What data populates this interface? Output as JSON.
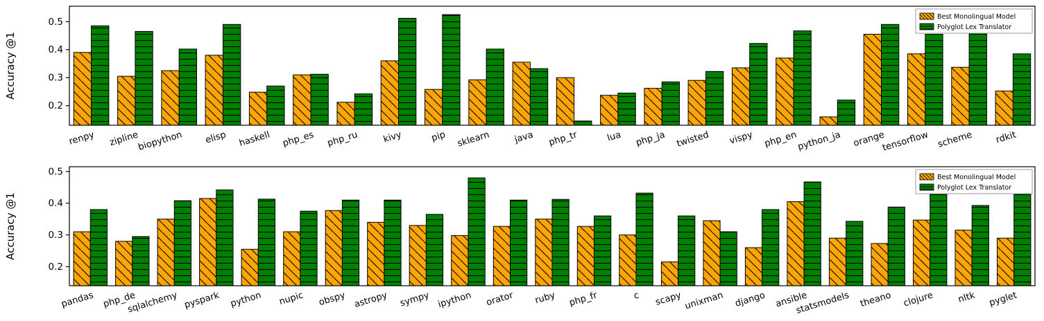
{
  "figure": {
    "background": "#ffffff",
    "accent_orange": "#FFA500",
    "accent_green": "#008000"
  },
  "chart_data": [
    {
      "type": "bar",
      "title": "",
      "xlabel": "",
      "ylabel": "Accuracy @1",
      "ylim": [
        0.13,
        0.555
      ],
      "yticks": [
        0.2,
        0.3,
        0.4,
        0.5
      ],
      "grid": false,
      "legend_position": "upper right",
      "legend": [
        "Best Monolingual Model",
        "Polyglot Lex Translator"
      ],
      "categories": [
        "renpy",
        "zipline",
        "biopython",
        "elisp",
        "haskell",
        "php_es",
        "php_ru",
        "kivy",
        "pip",
        "sklearn",
        "java",
        "php_tr",
        "lua",
        "php_ja",
        "twisted",
        "vispy",
        "php_en",
        "python_ja",
        "orange",
        "tensorflow",
        "scheme",
        "rdkit"
      ],
      "series": [
        {
          "name": "Best Monolingual Model",
          "color": "#FFA500",
          "hatch": "diagonal",
          "values": [
            0.39,
            0.305,
            0.325,
            0.38,
            0.248,
            0.31,
            0.212,
            0.36,
            0.258,
            0.292,
            0.355,
            0.3,
            0.237,
            0.262,
            0.29,
            0.335,
            0.37,
            0.16,
            0.455,
            0.385,
            0.337,
            0.252
          ]
        },
        {
          "name": "Polyglot Lex Translator",
          "color": "#008000",
          "hatch": "horizontal",
          "values": [
            0.485,
            0.465,
            0.402,
            0.49,
            0.27,
            0.312,
            0.242,
            0.512,
            0.525,
            0.402,
            0.332,
            0.145,
            0.245,
            0.285,
            0.322,
            0.422,
            0.467,
            0.22,
            0.49,
            0.455,
            0.477,
            0.385
          ]
        }
      ]
    },
    {
      "type": "bar",
      "title": "",
      "xlabel": "",
      "ylabel": "Accuracy @1",
      "ylim": [
        0.14,
        0.515
      ],
      "yticks": [
        0.2,
        0.3,
        0.4,
        0.5
      ],
      "grid": false,
      "legend_position": "upper right",
      "legend": [
        "Best Monolingual Model",
        "Polyglot Lex Translator"
      ],
      "categories": [
        "pandas",
        "php_de",
        "sqlalchemy",
        "pyspark",
        "python",
        "nupic",
        "obspy",
        "astropy",
        "sympy",
        "ipython",
        "orator",
        "ruby",
        "php_fr",
        "c",
        "scapy",
        "unixman",
        "django",
        "ansible",
        "statsmodels",
        "theano",
        "clojure",
        "nltk",
        "pyglet"
      ],
      "series": [
        {
          "name": "Best Monolingual Model",
          "color": "#FFA500",
          "hatch": "diagonal",
          "values": [
            0.31,
            0.28,
            0.35,
            0.415,
            0.255,
            0.31,
            0.377,
            0.34,
            0.33,
            0.298,
            0.327,
            0.35,
            0.327,
            0.3,
            0.215,
            0.345,
            0.26,
            0.405,
            0.29,
            0.273,
            0.347,
            0.315,
            0.29
          ]
        },
        {
          "name": "Polyglot Lex Translator",
          "color": "#008000",
          "hatch": "horizontal",
          "values": [
            0.38,
            0.295,
            0.408,
            0.442,
            0.413,
            0.375,
            0.41,
            0.41,
            0.365,
            0.48,
            0.41,
            0.412,
            0.36,
            0.432,
            0.36,
            0.31,
            0.38,
            0.467,
            0.343,
            0.388,
            0.445,
            0.393,
            0.44
          ]
        }
      ]
    }
  ]
}
